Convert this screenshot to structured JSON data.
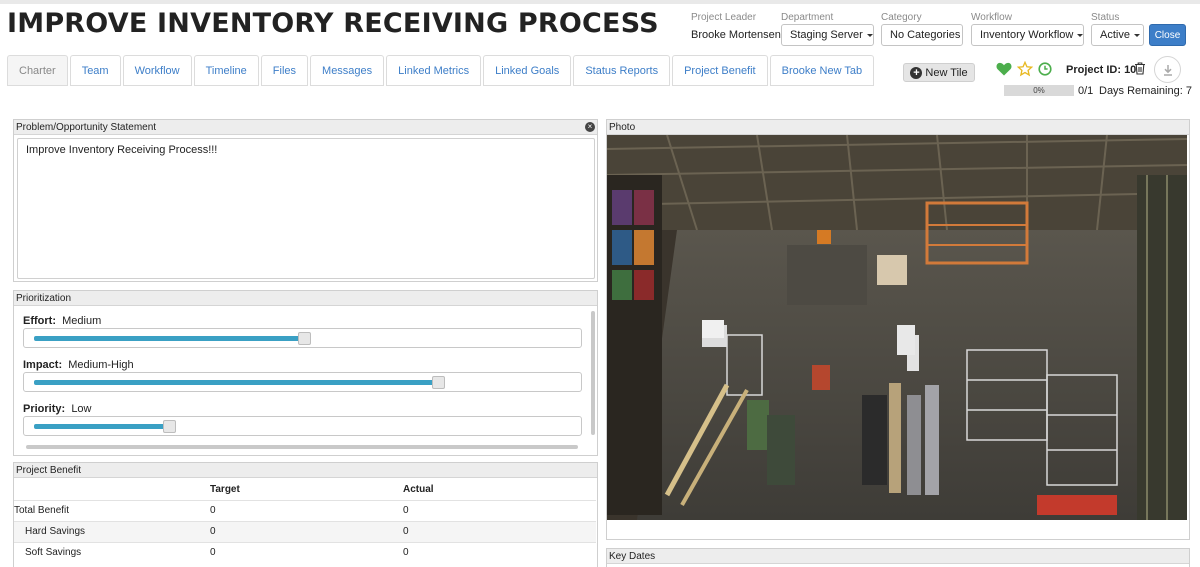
{
  "title": "IMPROVE INVENTORY RECEIVING PROCESS",
  "meta": {
    "leader_label": "Project Leader",
    "leader_value": "Brooke Mortensen",
    "department_label": "Department",
    "department_value": "Staging Server",
    "category_label": "Category",
    "category_value": "No Categories",
    "workflow_label": "Workflow",
    "workflow_value": "Inventory Workflow",
    "status_label": "Status",
    "status_value": "Active",
    "close_label": "Close"
  },
  "tabs": [
    "Charter",
    "Team",
    "Workflow",
    "Timeline",
    "Files",
    "Messages",
    "Linked Metrics",
    "Linked Goals",
    "Status Reports",
    "Project Benefit",
    "Brooke New Tab"
  ],
  "toolbar": {
    "new_tile_label": "New Tile",
    "project_id": "Project ID: 10",
    "progress_percent": 0,
    "progress_label": "0%",
    "progress_count": "0/1",
    "days_remaining": "Days Remaining: 7"
  },
  "problem": {
    "title": "Problem/Opportunity Statement",
    "text": "Improve Inventory Receiving Process!!!"
  },
  "prioritization": {
    "title": "Prioritization",
    "effort_label": "Effort:",
    "effort_value": "Medium",
    "effort_level": 0.5,
    "impact_label": "Impact:",
    "impact_value": "Medium-High",
    "impact_level": 0.75,
    "priority_label": "Priority:",
    "priority_value": "Low",
    "priority_level": 0.25
  },
  "benefit": {
    "title": "Project Benefit",
    "col_target": "Target",
    "col_actual": "Actual",
    "rows": [
      {
        "label": "Total Benefit",
        "target": "0",
        "actual": "0"
      },
      {
        "label": "Hard Savings",
        "target": "0",
        "actual": "0"
      },
      {
        "label": "Soft Savings",
        "target": "0",
        "actual": "0"
      }
    ]
  },
  "photo": {
    "title": "Photo"
  },
  "key_dates": {
    "title": "Key Dates"
  },
  "colors": {
    "accent": "#3d7ec8",
    "slider": "#3aa0c4",
    "heart": "#4cae4c",
    "star": "#e8b923",
    "clock": "#4cae4c"
  },
  "icons": [
    "plus-circle-icon",
    "heart-icon",
    "star-icon",
    "clock-icon",
    "trash-icon",
    "download-icon",
    "close-circle-icon"
  ]
}
